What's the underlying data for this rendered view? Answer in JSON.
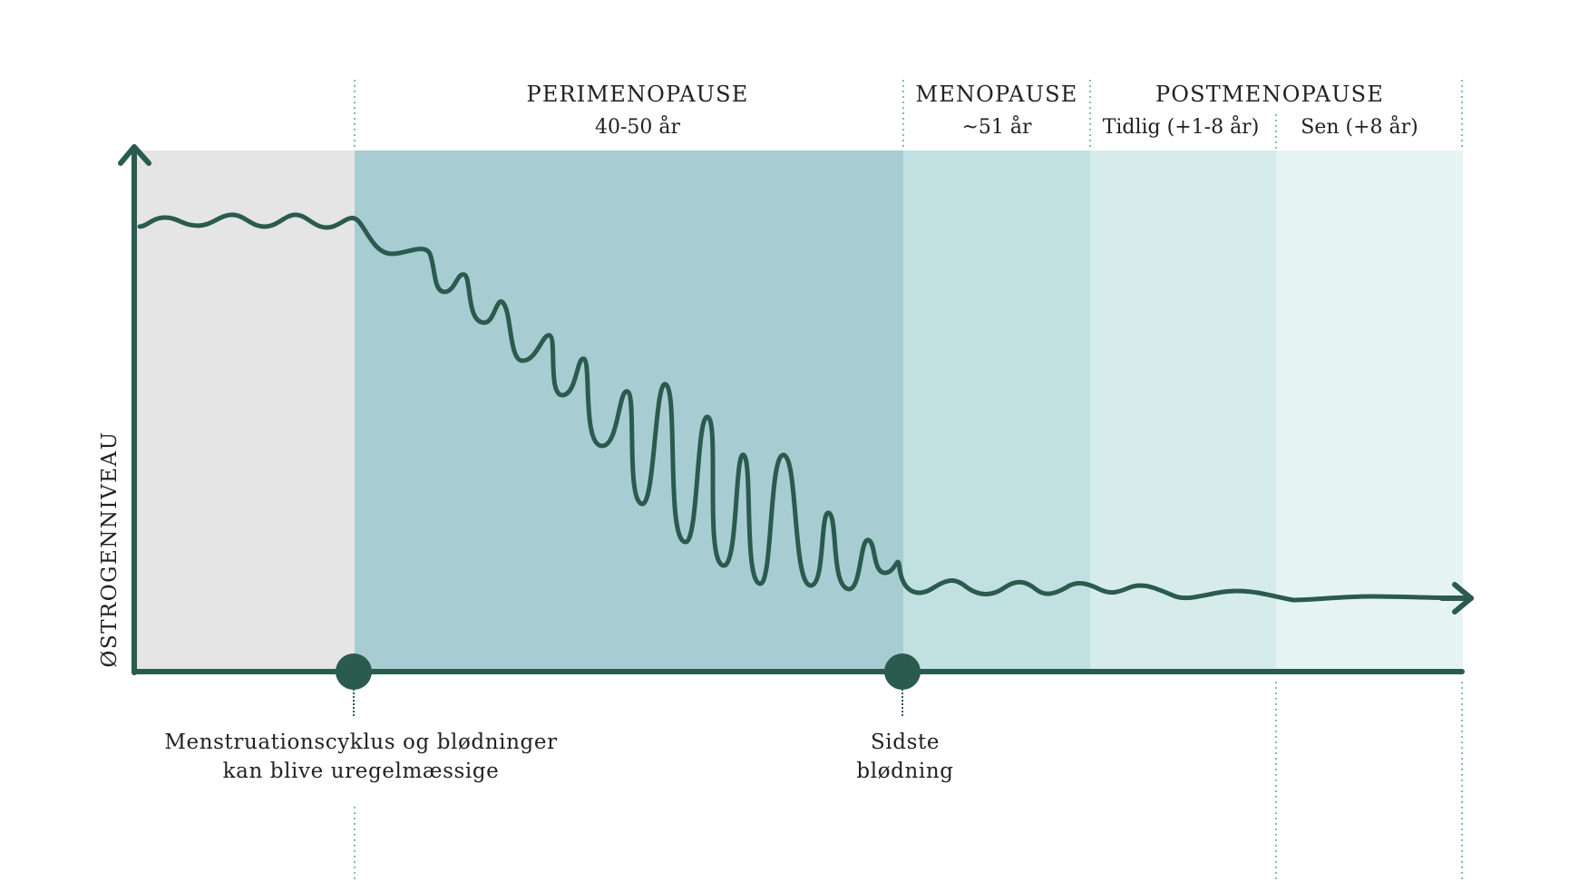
{
  "colors": {
    "band_pre": "#e5e5e5",
    "band_peri": "#a7cdd2",
    "band_meno": "#c1e0e1",
    "band_post_early": "#d6ecea",
    "band_post_late": "#e5f3f2",
    "line": "#2b5a4e",
    "divider": "#7fbfa6"
  },
  "y_axis_label": "ØSTROGENNIVEAU",
  "phases": {
    "peri": {
      "title": "PERIMENOPAUSE",
      "sub": "40-50 år"
    },
    "meno": {
      "title": "MENOPAUSE",
      "sub": "~51 år"
    },
    "post": {
      "title": "POSTMENOPAUSE",
      "early": "Tidlig (+1-8 år)",
      "late": "Sen (+8 år)"
    }
  },
  "markers": {
    "irregular": {
      "line1": "Menstruationscyklus og blødninger",
      "line2": "kan blive uregelmæssige"
    },
    "last_bleed": {
      "line1": "Sidste",
      "line2": "blødning"
    }
  },
  "icons": [
    "arrow-up-icon",
    "arrow-right-icon"
  ]
}
